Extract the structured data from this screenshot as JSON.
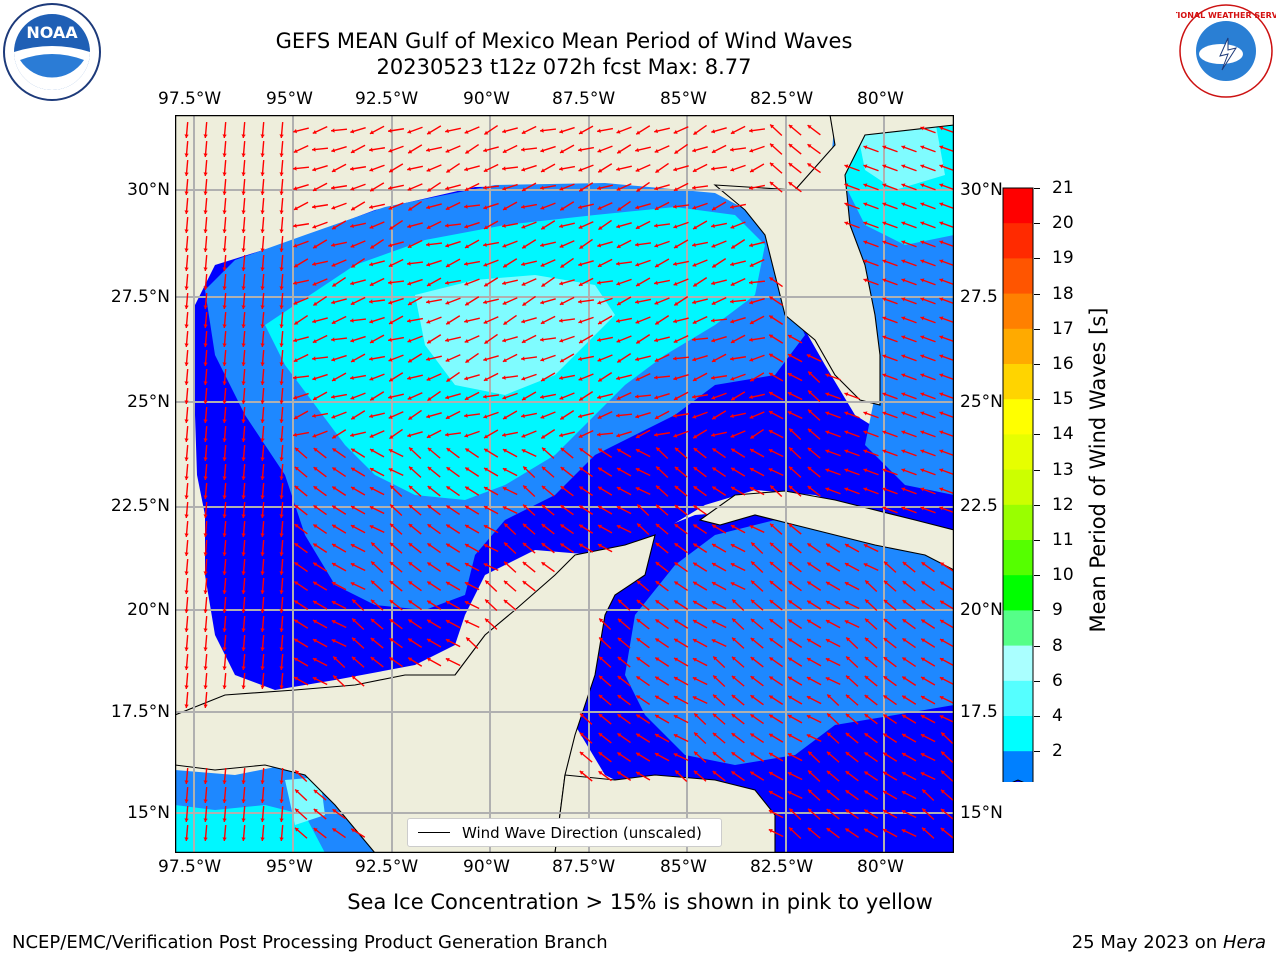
{
  "title": {
    "line1": "GEFS MEAN Gulf of Mexico Mean Period of Wind Waves",
    "line2": "20230523 t12z 072h fcst   Max: 8.77"
  },
  "lon_labels": [
    "97.5°W",
    "95°W",
    "92.5°W",
    "90°W",
    "87.5°W",
    "85°W",
    "82.5°W",
    "80°W"
  ],
  "lat_labels_left": [
    "30°N",
    "27.5°N",
    "25°N",
    "22.5°N",
    "20°N",
    "17.5°N",
    "15°N"
  ],
  "lat_labels_right": [
    "30°N",
    "27.5",
    "25°N",
    "22.5",
    "20°N",
    "17.5",
    "15°N"
  ],
  "colorbar": {
    "label": "Mean Period of Wind Waves [s]",
    "ticks": [
      "21",
      "20",
      "19",
      "18",
      "17",
      "16",
      "15",
      "14",
      "13",
      "12",
      "11",
      "10",
      "9",
      "8",
      "6",
      "4",
      "2"
    ],
    "colors": [
      "#ff0000",
      "#ff2a00",
      "#ff5500",
      "#ff8000",
      "#ffaa00",
      "#ffd400",
      "#ffff00",
      "#e6ff00",
      "#ccff00",
      "#99ff00",
      "#55ff00",
      "#00ff00",
      "#55ff88",
      "#aaffff",
      "#55ffff",
      "#00ffff",
      "#0080ff"
    ],
    "under_color": "#0000ff"
  },
  "map": {
    "land_color": "#eeeedc",
    "colors": {
      "lt": "#7ffcff",
      "cy": "#00f7ff",
      "md": "#1e88ff",
      "dp": "#0000ff"
    },
    "arrow_color": "#ff0000"
  },
  "legend": {
    "label": "Wind Wave Direction (unscaled)"
  },
  "note": "Sea Ice Concentration > 15% is shown in pink to yellow",
  "footer": {
    "left": "NCEP/EMC/Verification Post Processing Product Generation Branch",
    "date": "25 May 2023 on ",
    "host": "Hera"
  },
  "logos": {
    "noaa": "NOAA",
    "nws": "NATIONAL WEATHER SERVICE"
  }
}
